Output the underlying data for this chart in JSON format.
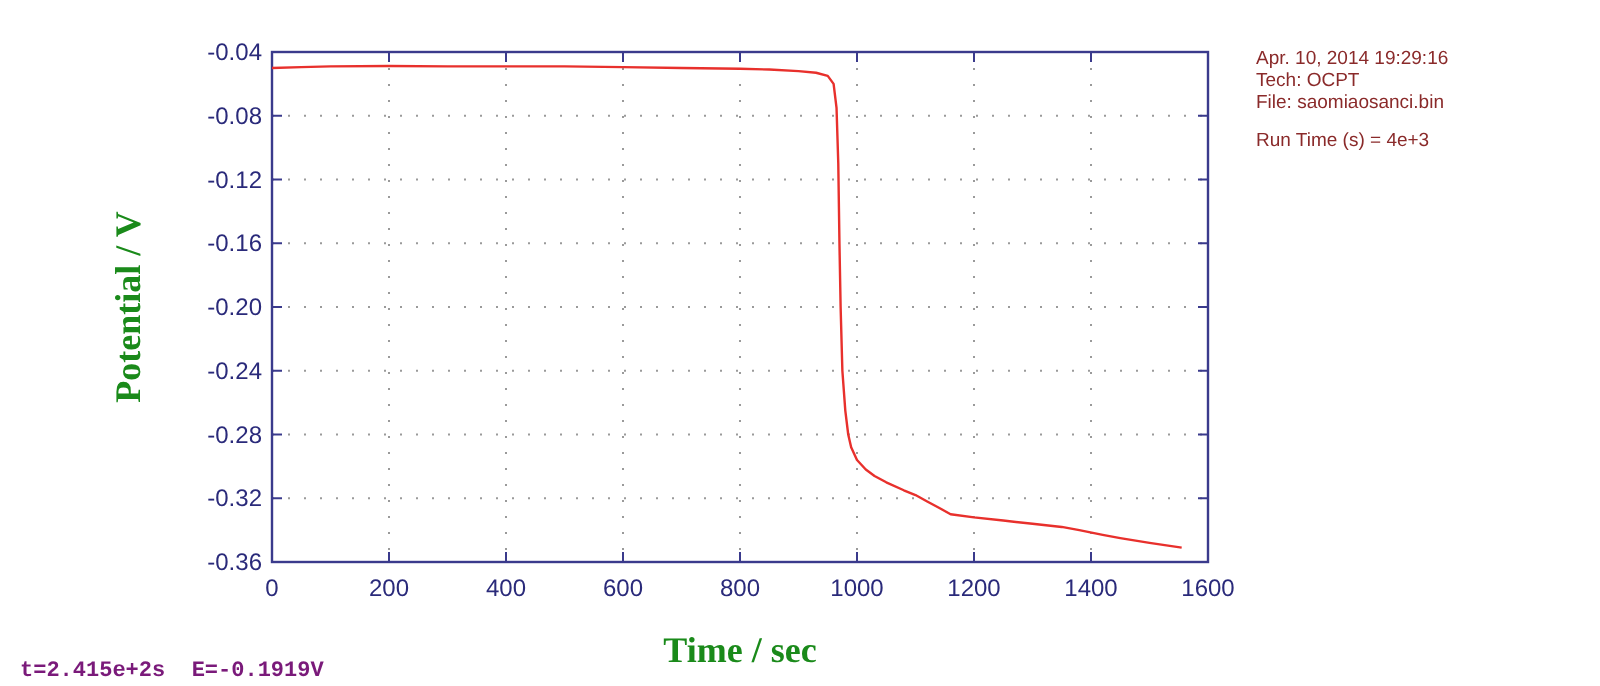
{
  "chart_data": {
    "type": "line",
    "xlabel": "Time / sec",
    "ylabel": "Potential / V",
    "x": [
      0,
      50,
      100,
      200,
      300,
      400,
      500,
      600,
      700,
      800,
      850,
      900,
      930,
      950,
      960,
      965,
      968,
      970,
      972,
      975,
      980,
      985,
      990,
      1000,
      1015,
      1030,
      1050,
      1080,
      1100,
      1120,
      1140,
      1160,
      1200,
      1250,
      1300,
      1350,
      1380,
      1420,
      1450,
      1500,
      1555
    ],
    "series": [
      {
        "color": "#e8302c",
        "values": [
          -0.05,
          -0.0495,
          -0.049,
          -0.0488,
          -0.049,
          -0.049,
          -0.049,
          -0.0495,
          -0.05,
          -0.0505,
          -0.051,
          -0.052,
          -0.053,
          -0.055,
          -0.06,
          -0.075,
          -0.11,
          -0.16,
          -0.2,
          -0.24,
          -0.265,
          -0.28,
          -0.288,
          -0.296,
          -0.302,
          -0.306,
          -0.31,
          -0.315,
          -0.318,
          -0.322,
          -0.326,
          -0.33,
          -0.332,
          -0.334,
          -0.336,
          -0.338,
          -0.34,
          -0.343,
          -0.345,
          -0.348,
          -0.351
        ]
      }
    ],
    "xlim": [
      0,
      1600
    ],
    "xticks": [
      0,
      200,
      400,
      600,
      800,
      1000,
      1200,
      1400,
      1600
    ],
    "ylim": [
      -0.36,
      -0.04
    ],
    "yticks": [
      {
        "value": -0.36,
        "label": "-0.36"
      },
      {
        "value": -0.32,
        "label": "-0.32"
      },
      {
        "value": -0.28,
        "label": "-0.28"
      },
      {
        "value": -0.24,
        "label": "-0.24"
      },
      {
        "value": -0.2,
        "label": "-0.20"
      },
      {
        "value": -0.16,
        "label": "-0.16"
      },
      {
        "value": -0.12,
        "label": "-0.12"
      },
      {
        "value": -0.08,
        "label": "-0.08"
      },
      {
        "value": -0.04,
        "label": "-0.04"
      }
    ],
    "grid": true,
    "marker": "none",
    "line_style": "solid",
    "annotations": [
      "Apr. 10, 2014   19:29:16",
      "Tech: OCPT",
      "File: saomiaosanci.bin",
      "Run Time (s) = 4e+3",
      "t=2.415e+2s  E=-0.1919V"
    ]
  }
}
